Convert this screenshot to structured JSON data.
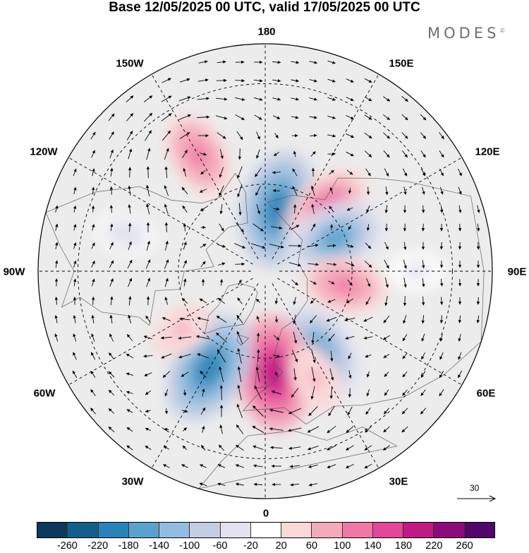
{
  "title": "Base 12/05/2025 00 UTC, valid 17/05/2025 00 UTC",
  "brand": {
    "name": "MODES",
    "mark": "©"
  },
  "longitude_labels": {
    "lon_180": "180",
    "lon_150E": "150E",
    "lon_120E": "120E",
    "lon_90E": "90E",
    "lon_60E": "60E",
    "lon_30E": "30E",
    "lon_0": "0",
    "lon_30W": "30W",
    "lon_60W": "60W",
    "lon_90W": "90W",
    "lon_120W": "120W",
    "lon_150W": "150W"
  },
  "reference_vector": {
    "value": "30",
    "icon": "arrow-right-icon"
  },
  "colorbar": {
    "colors": [
      "#0b3a5c",
      "#125f8c",
      "#2b82b8",
      "#5aa2cc",
      "#92bde0",
      "#c3cde4",
      "#e3e3f0",
      "#ffffff",
      "#fbd9d9",
      "#f5aabb",
      "#ef78a6",
      "#e2479a",
      "#c01a85",
      "#8c0b7b",
      "#52066a"
    ],
    "labels": [
      "-260",
      "-220",
      "-180",
      "-140",
      "-100",
      "-60",
      "-20",
      "20",
      "60",
      "100",
      "140",
      "180",
      "220",
      "260"
    ]
  },
  "anomaly_centres": [
    {
      "lat": 68,
      "lon": 168,
      "value": -200
    },
    {
      "lat": 60,
      "lon": 135,
      "value": 150
    },
    {
      "lat": 63,
      "lon": 115,
      "value": -170
    },
    {
      "lat": 62,
      "lon": 80,
      "value": 110
    },
    {
      "lat": 57,
      "lon": 35,
      "value": -170
    },
    {
      "lat": 55,
      "lon": 5,
      "value": 200
    },
    {
      "lat": 52,
      "lon": -30,
      "value": -190
    },
    {
      "lat": 50,
      "lon": 25,
      "value": 70
    },
    {
      "lat": 45,
      "lon": -150,
      "value": 120
    },
    {
      "lat": 55,
      "lon": -55,
      "value": 60
    },
    {
      "lat": 42,
      "lon": -105,
      "value": -40
    },
    {
      "lat": 40,
      "lon": 90,
      "value": -30
    }
  ]
}
